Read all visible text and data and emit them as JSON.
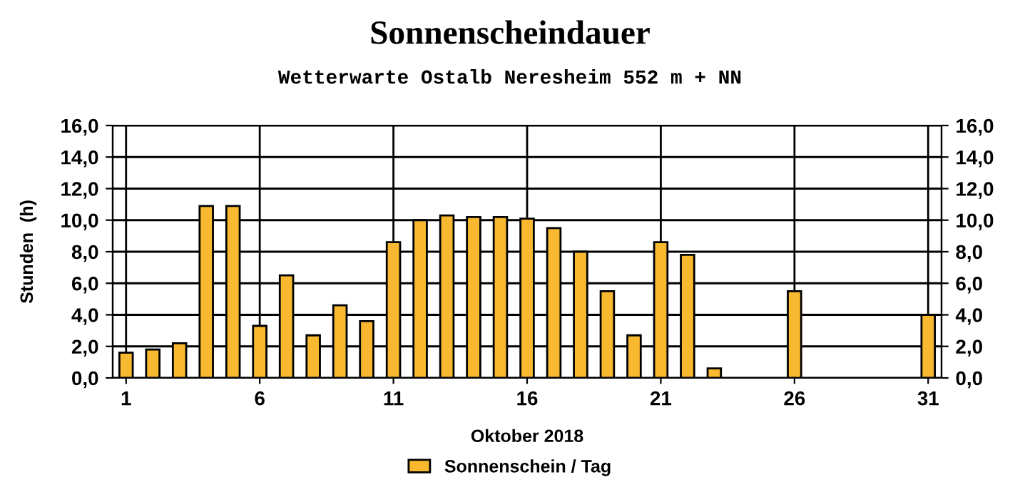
{
  "chart_data": {
    "type": "bar",
    "title": "Sonnenscheindauer",
    "subtitle": "Wetterwarte Ostalb Neresheim 552 m + NN",
    "xlabel": "Oktober 2018",
    "ylabel": "Stunden  (h)",
    "x": [
      1,
      2,
      3,
      4,
      5,
      6,
      7,
      8,
      9,
      10,
      11,
      12,
      13,
      14,
      15,
      16,
      17,
      18,
      19,
      20,
      21,
      22,
      23,
      24,
      25,
      26,
      27,
      28,
      29,
      30,
      31
    ],
    "series": [
      {
        "name": "Sonnenschein / Tag",
        "color": "#f8b830",
        "values": [
          1.6,
          1.8,
          2.2,
          10.9,
          10.9,
          3.3,
          6.5,
          2.7,
          4.6,
          3.6,
          8.6,
          10.0,
          10.3,
          10.2,
          10.2,
          10.1,
          9.5,
          8.0,
          5.5,
          2.7,
          8.6,
          7.8,
          0.6,
          null,
          null,
          5.5,
          null,
          null,
          null,
          null,
          4.0
        ]
      }
    ],
    "xlim": [
      0.5,
      31.5
    ],
    "xticks": [
      1,
      6,
      11,
      16,
      21,
      26,
      31
    ],
    "ylim": [
      0,
      16
    ],
    "yticks": [
      {
        "value": 0,
        "label": "0,0"
      },
      {
        "value": 2,
        "label": "2,0"
      },
      {
        "value": 4,
        "label": "4,0"
      },
      {
        "value": 6,
        "label": "6,0"
      },
      {
        "value": 8,
        "label": "8,0"
      },
      {
        "value": 10,
        "label": "10,0"
      },
      {
        "value": 12,
        "label": "12,0"
      },
      {
        "value": 14,
        "label": "14,0"
      },
      {
        "value": 16,
        "label": "16,0"
      }
    ],
    "y2lim": [
      0,
      16
    ],
    "y2ticks": [
      {
        "value": 0,
        "label": "0,0"
      },
      {
        "value": 2,
        "label": "2,0"
      },
      {
        "value": 4,
        "label": "4,0"
      },
      {
        "value": 6,
        "label": "6,0"
      },
      {
        "value": 8,
        "label": "8,0"
      },
      {
        "value": 10,
        "label": "10,0"
      },
      {
        "value": 12,
        "label": "12,0"
      },
      {
        "value": 14,
        "label": "14,0"
      },
      {
        "value": 16,
        "label": "16,0"
      }
    ],
    "grid": true,
    "legend": "bottom"
  }
}
